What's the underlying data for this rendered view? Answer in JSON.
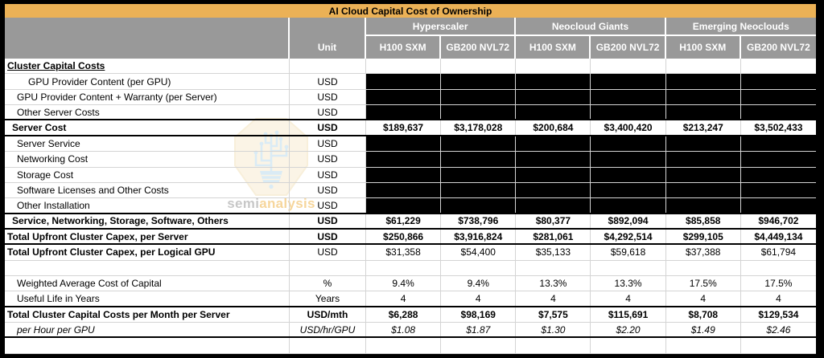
{
  "chart_data": {
    "type": "table",
    "title": "AI Cloud Capital Cost of Ownership",
    "column_groups": [
      "Hyperscaler",
      "Neocloud Giants",
      "Emerging Neoclouds"
    ],
    "columns": [
      "Unit",
      "Hyperscaler H100 SXM",
      "Hyperscaler GB200 NVL72",
      "Neocloud Giants H100 SXM",
      "Neocloud Giants GB200 NVL72",
      "Emerging Neoclouds H100 SXM",
      "Emerging Neoclouds GB200 NVL72"
    ],
    "rows": [
      {
        "label": "Cluster Capital Costs",
        "unit": "",
        "values": null,
        "section": true,
        "indent": 0
      },
      {
        "label": "GPU Provider Content (per GPU)",
        "unit": "USD",
        "values": null,
        "redacted": true,
        "indent": 3
      },
      {
        "label": "GPU Provider Content + Warranty (per Server)",
        "unit": "USD",
        "values": null,
        "redacted": true,
        "indent": 2
      },
      {
        "label": "Other Server Costs",
        "unit": "USD",
        "values": null,
        "redacted": true,
        "indent": 2,
        "hline": true
      },
      {
        "label": "Server Cost",
        "unit": "USD",
        "values": [
          "$189,637",
          "$3,178,028",
          "$200,684",
          "$3,400,420",
          "$213,247",
          "$3,502,433"
        ],
        "bold": true,
        "indent": 1,
        "hline": true
      },
      {
        "label": "Server Service",
        "unit": "USD",
        "values": null,
        "redacted": true,
        "indent": 2
      },
      {
        "label": "Networking Cost",
        "unit": "USD",
        "values": null,
        "redacted": true,
        "indent": 2
      },
      {
        "label": "Storage Cost",
        "unit": "USD",
        "values": null,
        "redacted": true,
        "indent": 2
      },
      {
        "label": "Software Licenses and Other Costs",
        "unit": "USD",
        "values": null,
        "redacted": true,
        "indent": 2
      },
      {
        "label": "Other Installation",
        "unit": "USD",
        "values": null,
        "redacted": true,
        "indent": 2,
        "hline": true
      },
      {
        "label": "Service, Networking, Storage, Software, Others",
        "unit": "USD",
        "values": [
          "$61,229",
          "$738,796",
          "$80,377",
          "$892,094",
          "$85,858",
          "$946,702"
        ],
        "bold": true,
        "indent": 1,
        "hline": true
      },
      {
        "label": "Total Upfront Cluster Capex, per Server",
        "unit": "USD",
        "values": [
          "$250,866",
          "$3,916,824",
          "$281,061",
          "$4,292,514",
          "$299,105",
          "$4,449,134"
        ],
        "bold": true,
        "indent": 0,
        "hline": true
      },
      {
        "label": "Total Upfront Cluster Capex, per Logical GPU",
        "unit": "USD",
        "values": [
          "$31,358",
          "$54,400",
          "$35,133",
          "$59,618",
          "$37,388",
          "$61,794"
        ],
        "label_bold": true,
        "indent": 0
      },
      {
        "label": "",
        "unit": "",
        "values": null,
        "empty": true,
        "indent": 0
      },
      {
        "label": "Weighted Average Cost of Capital",
        "unit": "%",
        "values": [
          "9.4%",
          "9.4%",
          "13.3%",
          "13.3%",
          "17.5%",
          "17.5%"
        ],
        "indent": 2
      },
      {
        "label": "Useful Life in Years",
        "unit": "Years",
        "values": [
          "4",
          "4",
          "4",
          "4",
          "4",
          "4"
        ],
        "indent": 2,
        "hline": true
      },
      {
        "label": "Total Cluster Capital Costs per Month per Server",
        "unit": "USD/mth",
        "values": [
          "$6,288",
          "$98,169",
          "$7,575",
          "$115,691",
          "$8,708",
          "$129,534"
        ],
        "bold": true,
        "indent": 0
      },
      {
        "label": "per Hour per GPU",
        "unit": "USD/hr/GPU",
        "values": [
          "$1.08",
          "$1.87",
          "$1.30",
          "$2.20",
          "$1.49",
          "$2.46"
        ],
        "italic": true,
        "indent": 2,
        "hline": true
      },
      {
        "label": "",
        "unit": "",
        "values": null,
        "empty": true,
        "indent": 0
      }
    ]
  },
  "header": {
    "unit_label": "Unit",
    "groups": [
      {
        "label": "Hyperscaler",
        "columns": [
          "H100 SXM",
          "GB200 NVL72"
        ]
      },
      {
        "label": "Neocloud Giants",
        "columns": [
          "H100 SXM",
          "GB200 NVL72"
        ]
      },
      {
        "label": "Emerging Neoclouds",
        "columns": [
          "H100 SXM",
          "GB200 NVL72"
        ]
      }
    ]
  },
  "watermark": {
    "text_gray": "semi",
    "text_orange": "analysis"
  },
  "colors": {
    "title_bar": "#ebb156",
    "header_bg": "#999999",
    "header_text": "#ffffff",
    "redacted_cell": "#000000",
    "grid_line": "#d4d4d4",
    "outer_border": "#000000",
    "watermark_fill": "#f8ecd2",
    "watermark_tree": "#bcdcee",
    "watermark_text_gray": "#9a9a9a",
    "watermark_text_orange": "#efb54d"
  }
}
